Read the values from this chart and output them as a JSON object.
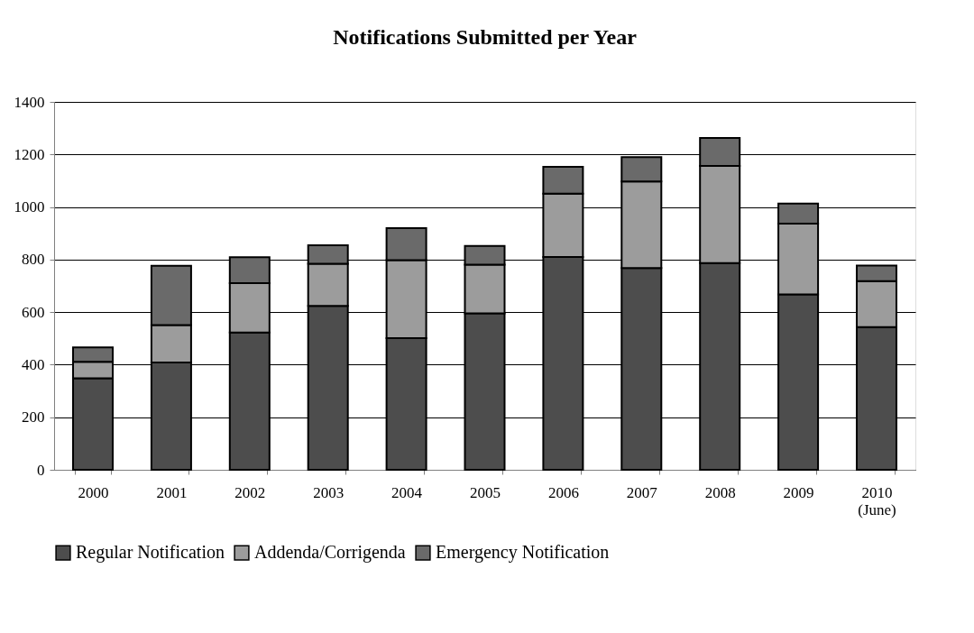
{
  "chart_data": {
    "type": "bar",
    "title": "Notifications Submitted per Year",
    "stacked": true,
    "categories": [
      "2000",
      "2001",
      "2002",
      "2003",
      "2004",
      "2005",
      "2006",
      "2007",
      "2008",
      "2009",
      "2010 (June)"
    ],
    "series": [
      {
        "name": "Regular Notification",
        "color": "#4d4d4d",
        "values": [
          348,
          408,
          522,
          624,
          501,
          595,
          810,
          768,
          787,
          667,
          543
        ]
      },
      {
        "name": "Addenda/Corrigenda",
        "color": "#9c9c9c",
        "values": [
          63,
          143,
          188,
          160,
          297,
          186,
          241,
          329,
          369,
          270,
          175
        ]
      },
      {
        "name": "Emergency Notification",
        "color": "#6a6a6a",
        "values": [
          55,
          225,
          99,
          70,
          122,
          71,
          102,
          93,
          107,
          76,
          59
        ]
      }
    ],
    "ylim": [
      0,
      1400
    ],
    "yticks": [
      0,
      200,
      400,
      600,
      800,
      1000,
      1200,
      1400
    ],
    "grid": "y",
    "legend": "bottom"
  }
}
